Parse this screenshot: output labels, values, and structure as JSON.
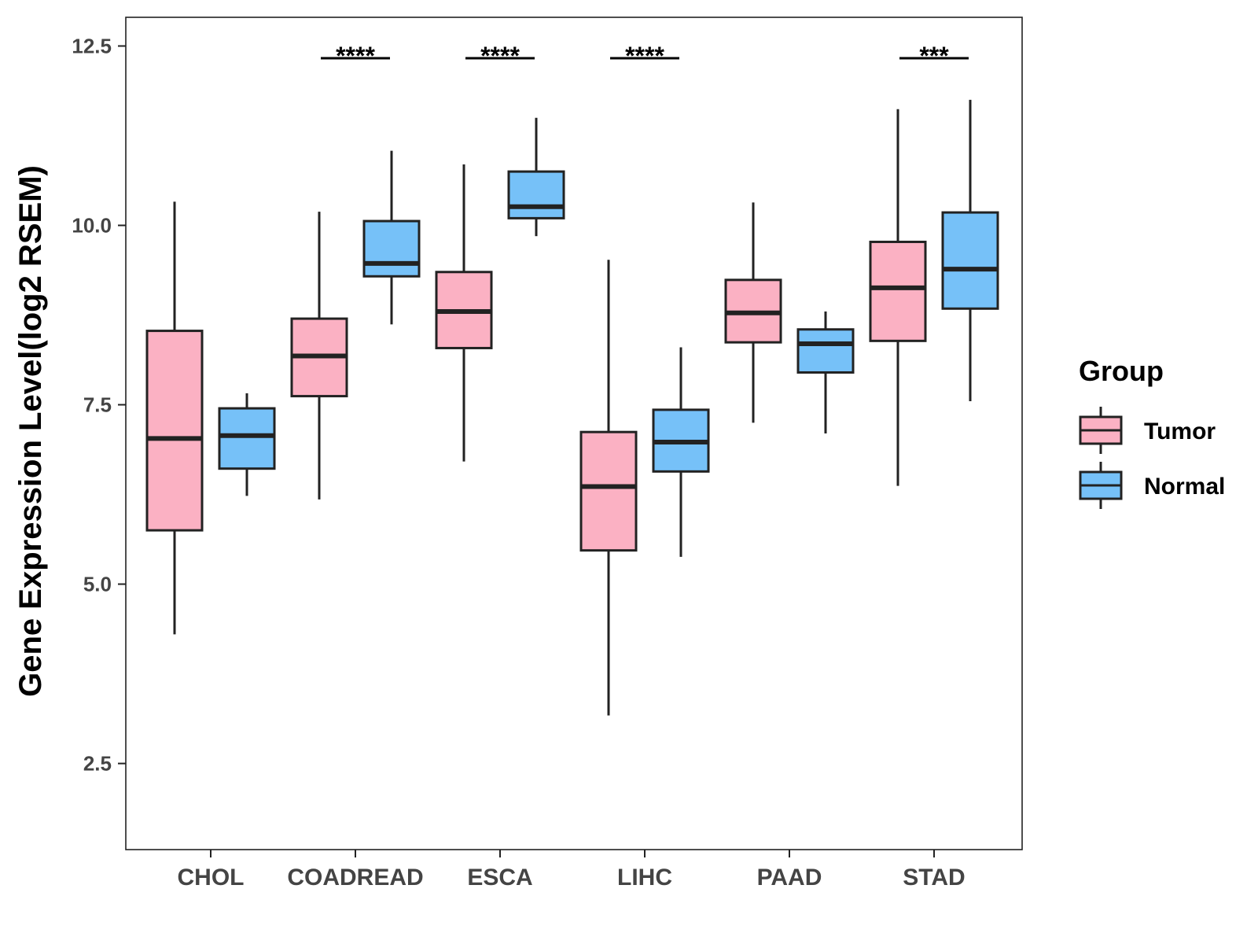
{
  "chart_data": {
    "type": "box",
    "title": "",
    "xlabel": "",
    "ylabel": "Gene Expression Level(log2 RSEM)",
    "ylim": [
      1.3,
      12.9
    ],
    "yticks": [
      2.5,
      5.0,
      7.5,
      10.0,
      12.5
    ],
    "ytick_labels": [
      "2.5",
      "5.0",
      "7.5",
      "10.0",
      "12.5"
    ],
    "categories": [
      "CHOL",
      "COADREAD",
      "ESCA",
      "LIHC",
      "PAAD",
      "STAD"
    ],
    "legend": {
      "title": "Group",
      "position": "right",
      "entries": [
        {
          "name": "Tumor",
          "color": "#FBB1C3"
        },
        {
          "name": "Normal",
          "color": "#76C1F8"
        }
      ]
    },
    "series": [
      {
        "name": "Tumor",
        "color": "#FBB1C3",
        "boxes": [
          {
            "whisker_low": 4.3,
            "q1": 5.75,
            "median": 7.03,
            "q3": 8.53,
            "whisker_high": 10.33
          },
          {
            "whisker_low": 6.18,
            "q1": 7.62,
            "median": 8.18,
            "q3": 8.7,
            "whisker_high": 10.19
          },
          {
            "whisker_low": 6.71,
            "q1": 8.29,
            "median": 8.8,
            "q3": 9.35,
            "whisker_high": 10.85
          },
          {
            "whisker_low": 3.17,
            "q1": 5.47,
            "median": 6.36,
            "q3": 7.12,
            "whisker_high": 9.52
          },
          {
            "whisker_low": 7.25,
            "q1": 8.37,
            "median": 8.78,
            "q3": 9.24,
            "whisker_high": 10.32
          },
          {
            "whisker_low": 6.37,
            "q1": 8.39,
            "median": 9.13,
            "q3": 9.77,
            "whisker_high": 11.62
          }
        ]
      },
      {
        "name": "Normal",
        "color": "#76C1F8",
        "boxes": [
          {
            "whisker_low": 6.23,
            "q1": 6.61,
            "median": 7.07,
            "q3": 7.45,
            "whisker_high": 7.66
          },
          {
            "whisker_low": 8.62,
            "q1": 9.29,
            "median": 9.47,
            "q3": 10.06,
            "whisker_high": 11.04
          },
          {
            "whisker_low": 9.85,
            "q1": 10.1,
            "median": 10.26,
            "q3": 10.75,
            "whisker_high": 11.5
          },
          {
            "whisker_low": 5.38,
            "q1": 6.57,
            "median": 6.98,
            "q3": 7.43,
            "whisker_high": 8.3
          },
          {
            "whisker_low": 7.1,
            "q1": 7.95,
            "median": 8.35,
            "q3": 8.55,
            "whisker_high": 8.8
          },
          {
            "whisker_low": 7.55,
            "q1": 8.84,
            "median": 9.39,
            "q3": 10.18,
            "whisker_high": 11.75
          }
        ]
      }
    ],
    "significance": [
      {
        "category": "CHOL",
        "label": ""
      },
      {
        "category": "COADREAD",
        "label": "****"
      },
      {
        "category": "ESCA",
        "label": "****"
      },
      {
        "category": "LIHC",
        "label": "****"
      },
      {
        "category": "PAAD",
        "label": ""
      },
      {
        "category": "STAD",
        "label": "***"
      }
    ]
  }
}
